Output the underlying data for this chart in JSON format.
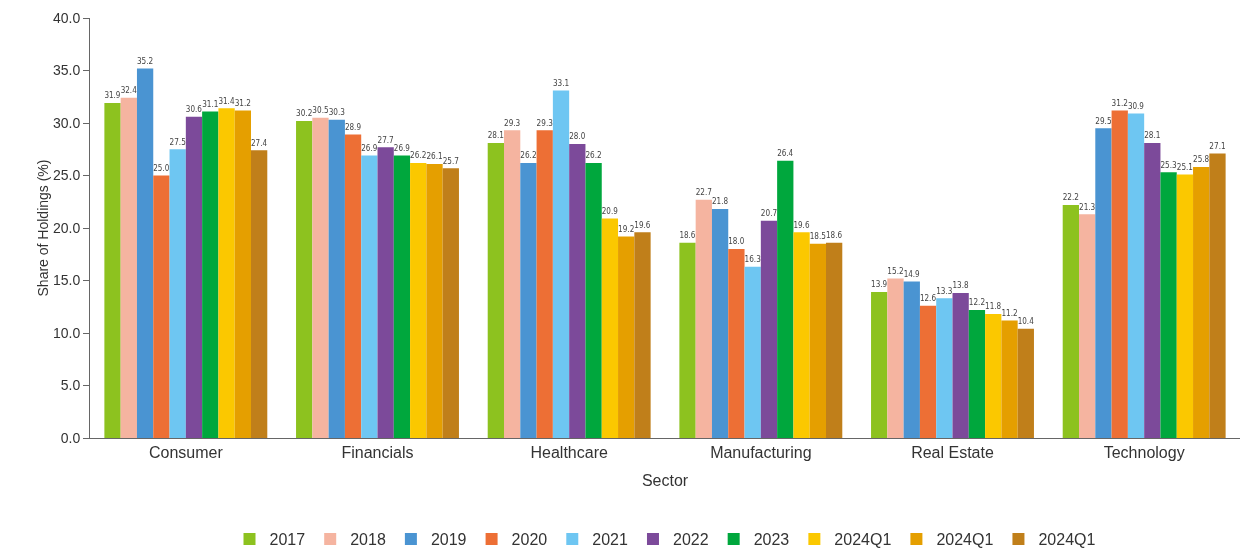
{
  "chart_data": {
    "type": "bar",
    "xlabel": "Sector",
    "ylabel": "Share of Holdings (%)",
    "categories": [
      "Consumer",
      "Financials",
      "Healthcare",
      "Manufacturing",
      "Real Estate",
      "Technology"
    ],
    "series": [
      {
        "name": "2017",
        "color": "#8dc21f",
        "values": [
          31.9,
          30.2,
          28.1,
          18.6,
          13.9,
          22.2
        ],
        "value_labels": [
          "31.9",
          "30.2",
          "28.1",
          "18.6",
          "13.9",
          "22.2"
        ]
      },
      {
        "name": "2018",
        "color": "#f5b4a0",
        "values": [
          32.4,
          30.5,
          29.3,
          22.7,
          15.2,
          21.3
        ],
        "value_labels": [
          "32.4",
          "30.5",
          "29.3",
          "22.7",
          "15.2",
          "21.3"
        ]
      },
      {
        "name": "2019",
        "color": "#4a94d2",
        "values": [
          35.2,
          30.3,
          26.2,
          21.8,
          14.9,
          29.5
        ],
        "value_labels": [
          "35.2",
          "30.3",
          "26.2",
          "21.8",
          "14.9",
          "29.5"
        ]
      },
      {
        "name": "2020",
        "color": "#ed6f35",
        "values": [
          25.0,
          28.9,
          29.3,
          18.0,
          12.6,
          31.2
        ],
        "value_labels": [
          "25.0",
          "28.9",
          "29.3",
          "18.0",
          "12.6",
          "31.2"
        ]
      },
      {
        "name": "2021",
        "color": "#6ec6f2",
        "values": [
          27.5,
          26.9,
          33.1,
          16.3,
          13.3,
          30.9
        ],
        "value_labels": [
          "27.5",
          "26.9",
          "33.1",
          "16.3",
          "13.3",
          "30.9"
        ]
      },
      {
        "name": "2022",
        "color": "#7c4a9a",
        "values": [
          30.6,
          27.7,
          28.0,
          20.7,
          13.8,
          28.1
        ],
        "value_labels": [
          "30.6",
          "27.7",
          "28.0",
          "20.7",
          "13.8",
          "28.1"
        ]
      },
      {
        "name": "2023",
        "color": "#00a73d",
        "values": [
          31.1,
          26.9,
          26.2,
          26.4,
          12.2,
          25.3
        ],
        "value_labels": [
          "31.1",
          "26.9",
          "26.2",
          "26.4",
          "12.2",
          "25.3"
        ]
      },
      {
        "name": "2024Q1",
        "color": "#fbc800",
        "values": [
          31.4,
          26.2,
          20.9,
          19.6,
          11.8,
          25.1
        ],
        "value_labels": [
          "31.4",
          "26.2",
          "20.9",
          "19.6",
          "11.8",
          "25.1"
        ]
      },
      {
        "name": "2024Q1",
        "color": "#e59f00",
        "values": [
          31.2,
          26.1,
          19.2,
          18.5,
          11.2,
          25.8
        ],
        "value_labels": [
          "31.2",
          "26.1",
          "19.2",
          "18.5",
          "11.2",
          "25.8"
        ]
      },
      {
        "name": "2024Q1",
        "color": "#c07f1a",
        "values": [
          27.4,
          25.7,
          19.6,
          18.6,
          10.4,
          27.1
        ],
        "value_labels": [
          "27.4",
          "25.7",
          "19.6",
          "18.6",
          "10.4",
          "27.1"
        ]
      }
    ],
    "ylim": [
      0,
      40
    ],
    "yticks": [
      {
        "value": 0,
        "label": "0.0"
      },
      {
        "value": 5,
        "label": "5.0"
      },
      {
        "value": 10,
        "label": "10.0"
      },
      {
        "value": 15,
        "label": "15.0"
      },
      {
        "value": 20,
        "label": "20.0"
      },
      {
        "value": 25,
        "label": "25.0"
      },
      {
        "value": 30,
        "label": "30.0"
      },
      {
        "value": 35,
        "label": "35.0"
      },
      {
        "value": 40,
        "label": "40.0"
      }
    ],
    "grid": false,
    "legend": "bottom"
  }
}
